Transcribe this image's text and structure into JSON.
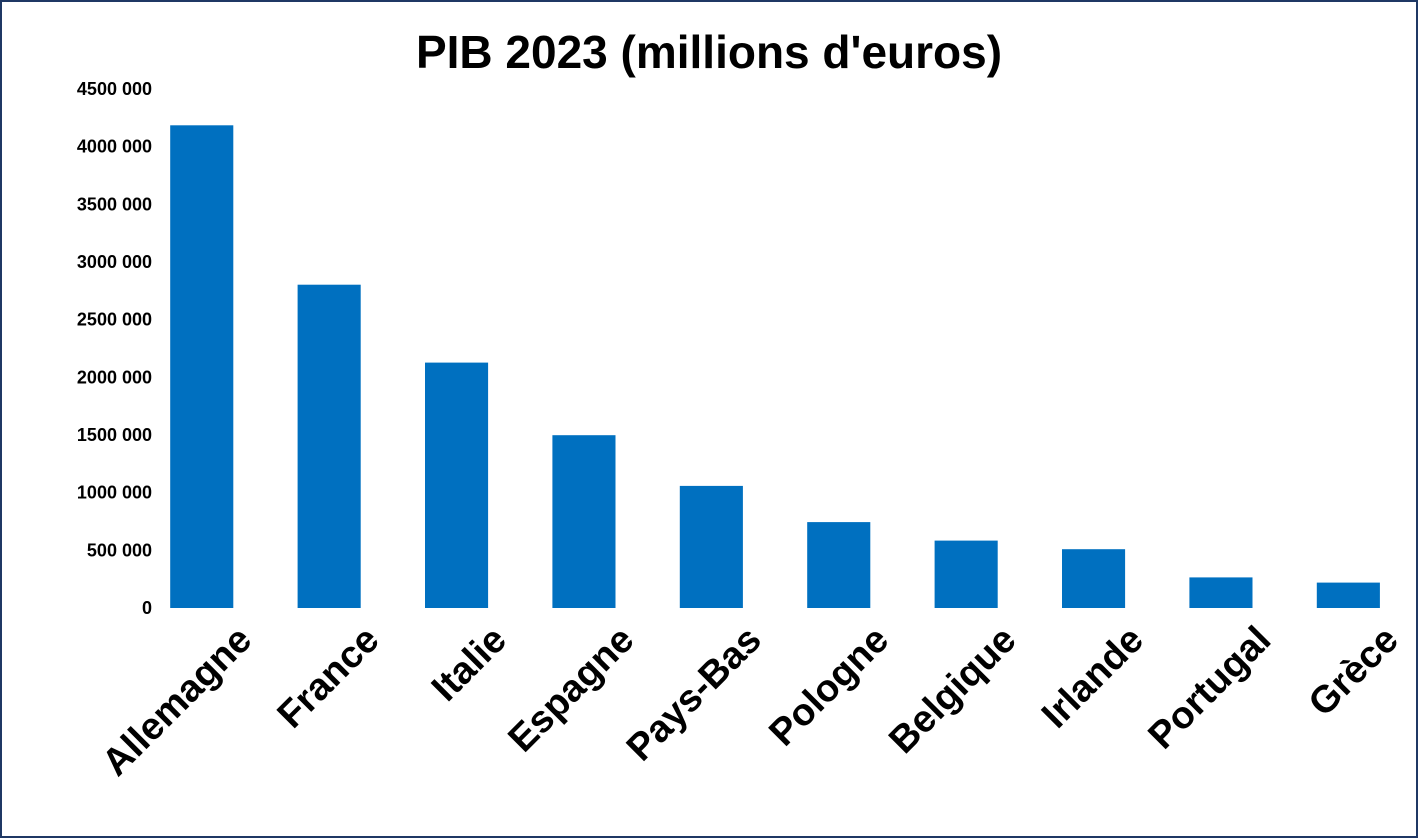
{
  "chart_data": {
    "type": "bar",
    "title": "PIB 2023 (millions d'euros)",
    "xlabel": "",
    "ylabel": "",
    "categories": [
      "Allemagne",
      "France",
      "Italie",
      "Espagne",
      "Pays-Bas",
      "Pologne",
      "Belgique",
      "Irlande",
      "Portugal",
      "Grèce"
    ],
    "values": [
      4185000,
      2803000,
      2128000,
      1498000,
      1059000,
      745000,
      584000,
      510000,
      265000,
      220000
    ],
    "ylim": [
      0,
      4500000
    ],
    "yticks": [
      0,
      500000,
      1000000,
      1500000,
      2000000,
      2500000,
      3000000,
      3500000,
      4000000,
      4500000
    ],
    "ytick_labels": [
      "0",
      "500 000",
      "1000 000",
      "1500 000",
      "2000 000",
      "2500 000",
      "3000 000",
      "3500 000",
      "4000 000",
      "4500 000"
    ],
    "grid": false,
    "legend": "none",
    "bar_color": "#0070c0",
    "frame_color": "#1f3864"
  }
}
